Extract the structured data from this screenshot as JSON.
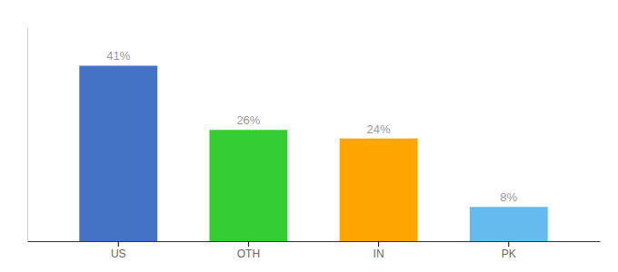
{
  "chart_data": {
    "type": "bar",
    "categories": [
      "US",
      "OTH",
      "IN",
      "PK"
    ],
    "values": [
      41,
      26,
      24,
      8
    ],
    "value_labels": [
      "41%",
      "26%",
      "24%",
      "8%"
    ],
    "data_labels": true,
    "colors": [
      "#4472C4",
      "#33CC33",
      "#FFA500",
      "#66BBEE"
    ],
    "ylim": [
      0,
      50
    ],
    "tick_labels": "x"
  }
}
